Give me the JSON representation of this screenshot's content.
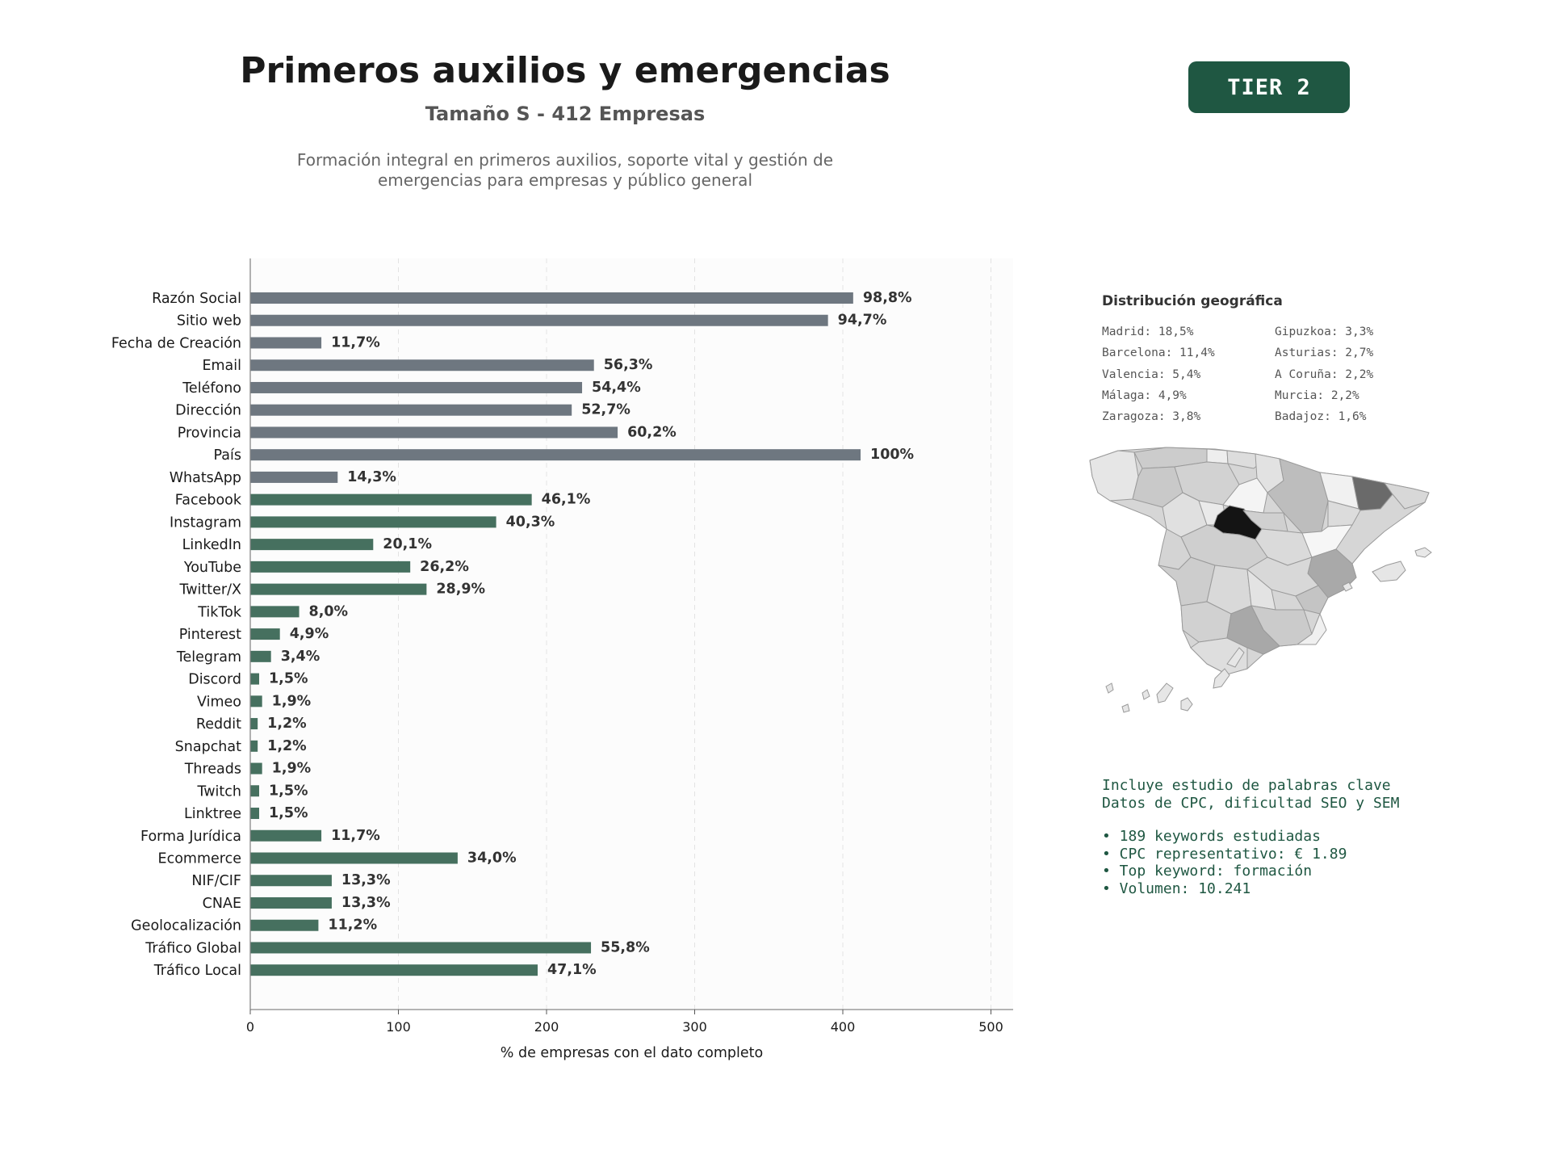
{
  "header": {
    "title": "Primeros auxilios y emergencias",
    "subtitle": "Tamaño S - 412 Empresas",
    "description_lines": [
      "Formación integral en primeros auxilios, soporte vital y gestión de",
      "emergencias para empresas y público general"
    ],
    "tier_badge": "TIER 2"
  },
  "colors": {
    "basic_bar": "#6e7780",
    "digital_bar": "#46705f",
    "badge": "#1f5742",
    "info_text": "#1f5742"
  },
  "chart_data": {
    "type": "bar",
    "orientation": "horizontal",
    "xlabel": "% de empresas con el dato completo",
    "xlim": [
      0,
      515
    ],
    "xticks": [
      0,
      100,
      200,
      300,
      400,
      500
    ],
    "grid": "vertical dashed",
    "categories": [
      "Razón Social",
      "Sitio web",
      "Fecha de Creación",
      "Email",
      "Teléfono",
      "Dirección",
      "Provincia",
      "País",
      "WhatsApp",
      "Facebook",
      "Instagram",
      "LinkedIn",
      "YouTube",
      "Twitter/X",
      "TikTok",
      "Pinterest",
      "Telegram",
      "Discord",
      "Vimeo",
      "Reddit",
      "Snapchat",
      "Threads",
      "Twitch",
      "Linktree",
      "Forma Jurídica",
      "Ecommerce",
      "NIF/CIF",
      "CNAE",
      "Geolocalización",
      "Tráfico Global",
      "Tráfico Local"
    ],
    "values": [
      407,
      390,
      48,
      232,
      224,
      217,
      248,
      412,
      59,
      190,
      166,
      83,
      108,
      119,
      33,
      20,
      14,
      6,
      8,
      5,
      5,
      8,
      6,
      6,
      48,
      140,
      55,
      55,
      46,
      230,
      194
    ],
    "labels": [
      "98,8%",
      "94,7%",
      "11,7%",
      "56,3%",
      "54,4%",
      "52,7%",
      "60,2%",
      "100%",
      "14,3%",
      "46,1%",
      "40,3%",
      "20,1%",
      "26,2%",
      "28,9%",
      "8,0%",
      "4,9%",
      "3,4%",
      "1,5%",
      "1,9%",
      "1,2%",
      "1,2%",
      "1,9%",
      "1,5%",
      "1,5%",
      "11,7%",
      "34,0%",
      "13,3%",
      "13,3%",
      "11,2%",
      "55,8%",
      "47,1%"
    ],
    "groups": [
      "basic",
      "basic",
      "basic",
      "basic",
      "basic",
      "basic",
      "basic",
      "basic",
      "basic",
      "digital",
      "digital",
      "digital",
      "digital",
      "digital",
      "digital",
      "digital",
      "digital",
      "digital",
      "digital",
      "digital",
      "digital",
      "digital",
      "digital",
      "digital",
      "digital",
      "digital",
      "digital",
      "digital",
      "digital",
      "digital",
      "digital"
    ]
  },
  "geo": {
    "title": "Distribución geográfica",
    "items": [
      "Madrid: 18,5%",
      "Gipuzkoa: 3,3%",
      "Barcelona: 11,4%",
      "Asturias: 2,7%",
      "Valencia: 5,4%",
      "A Coruña: 2,2%",
      "Málaga: 4,9%",
      "Murcia: 2,2%",
      "Zaragoza: 3,8%",
      "Badajoz: 1,6%"
    ]
  },
  "info": {
    "line1": "Incluye estudio de palabras clave",
    "line2": "Datos de CPC, dificultad SEO y SEM",
    "bullets": [
      "• 189 keywords estudiadas",
      "• CPC representativo: € 1.89",
      "• Top keyword: formación",
      "• Volumen: 10.241"
    ]
  }
}
